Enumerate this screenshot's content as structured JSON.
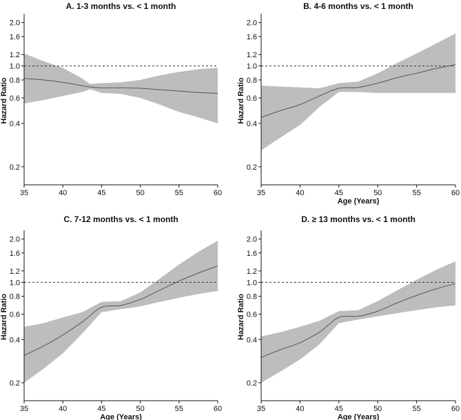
{
  "colors": {
    "band": "#bdbdbd",
    "line": "#555555",
    "reference": "#333333",
    "axis": "#111111",
    "text": "#111111"
  },
  "chart_data": [
    {
      "type": "line",
      "title": "A. 1-3 months vs. < 1 month",
      "xlabel": "",
      "ylabel": "Hazard Ratio",
      "xlim": [
        35,
        60
      ],
      "ylim": [
        0.15,
        2.2
      ],
      "y_scale": "log",
      "xticks": [
        "35",
        "40",
        "45",
        "50",
        "55",
        "60"
      ],
      "yticks": [
        "0.2",
        "0.4",
        "0.6",
        "0.8",
        "1.0",
        "1.2",
        "1.6",
        "2.0"
      ],
      "reference_line": 1.0,
      "x": [
        35,
        37.5,
        40,
        42.5,
        43.5,
        45,
        47.5,
        50,
        52.5,
        55,
        57.5,
        60
      ],
      "hr": [
        0.82,
        0.8,
        0.77,
        0.73,
        0.715,
        0.705,
        0.705,
        0.7,
        0.685,
        0.67,
        0.655,
        0.645
      ],
      "ci_lower": [
        0.55,
        0.58,
        0.62,
        0.66,
        0.69,
        0.65,
        0.64,
        0.6,
        0.54,
        0.48,
        0.44,
        0.4
      ],
      "ci_upper": [
        1.22,
        1.08,
        0.97,
        0.82,
        0.75,
        0.76,
        0.77,
        0.8,
        0.86,
        0.91,
        0.95,
        0.97
      ]
    },
    {
      "type": "line",
      "title": "B. 4-6 months vs. < 1 month",
      "xlabel": "Age (Years)",
      "ylabel": "Hazard Ratio",
      "xlim": [
        35,
        60
      ],
      "ylim": [
        0.15,
        2.2
      ],
      "y_scale": "log",
      "xticks": [
        "35",
        "40",
        "45",
        "50",
        "55",
        "60"
      ],
      "yticks": [
        "0.2",
        "0.4",
        "0.6",
        "0.8",
        "1.0",
        "1.2",
        "1.6",
        "2.0"
      ],
      "reference_line": 1.0,
      "x": [
        35,
        37.5,
        40,
        42.5,
        45,
        47.5,
        50,
        52.5,
        55,
        57.5,
        60
      ],
      "hr": [
        0.44,
        0.49,
        0.54,
        0.62,
        0.7,
        0.71,
        0.76,
        0.83,
        0.89,
        0.96,
        1.02
      ],
      "ci_lower": [
        0.26,
        0.32,
        0.39,
        0.52,
        0.66,
        0.66,
        0.65,
        0.65,
        0.65,
        0.65,
        0.65
      ],
      "ci_upper": [
        0.73,
        0.72,
        0.71,
        0.7,
        0.76,
        0.78,
        0.89,
        1.05,
        1.22,
        1.43,
        1.68
      ]
    },
    {
      "type": "line",
      "title": "C. 7-12 months vs. < 1 month",
      "xlabel": "Age (Years)",
      "ylabel": "Hazard Ratio",
      "xlim": [
        35,
        60
      ],
      "ylim": [
        0.15,
        2.2
      ],
      "y_scale": "log",
      "xticks": [
        "35",
        "40",
        "45",
        "50",
        "55",
        "60"
      ],
      "yticks": [
        "0.2",
        "0.4",
        "0.6",
        "0.8",
        "1.0",
        "1.2",
        "1.6",
        "2.0"
      ],
      "reference_line": 1.0,
      "x": [
        35,
        37.5,
        40,
        42.5,
        45,
        47.5,
        50,
        52.5,
        55,
        57.5,
        60
      ],
      "hr": [
        0.31,
        0.36,
        0.43,
        0.53,
        0.67,
        0.69,
        0.76,
        0.88,
        1.02,
        1.16,
        1.3
      ],
      "ci_lower": [
        0.2,
        0.25,
        0.32,
        0.44,
        0.62,
        0.65,
        0.68,
        0.73,
        0.78,
        0.83,
        0.87
      ],
      "ci_upper": [
        0.49,
        0.52,
        0.57,
        0.62,
        0.73,
        0.74,
        0.85,
        1.06,
        1.33,
        1.63,
        1.95
      ]
    },
    {
      "type": "line",
      "title": "D.  ≥ 13 months vs. < 1 month",
      "xlabel": "Age (Years)",
      "ylabel": "Hazard Ratio",
      "xlim": [
        35,
        60
      ],
      "ylim": [
        0.15,
        2.2
      ],
      "y_scale": "log",
      "xticks": [
        "35",
        "40",
        "45",
        "50",
        "55",
        "60"
      ],
      "yticks": [
        "0.2",
        "0.4",
        "0.6",
        "0.8",
        "1.0",
        "1.2",
        "1.6",
        "2.0"
      ],
      "reference_line": 1.0,
      "x": [
        35,
        37.5,
        40,
        42.5,
        45,
        47.5,
        50,
        52.5,
        55,
        57.5,
        60
      ],
      "hr": [
        0.3,
        0.34,
        0.38,
        0.45,
        0.57,
        0.58,
        0.63,
        0.72,
        0.81,
        0.9,
        0.98
      ],
      "ci_lower": [
        0.2,
        0.24,
        0.29,
        0.37,
        0.52,
        0.55,
        0.58,
        0.61,
        0.64,
        0.67,
        0.69
      ],
      "ci_upper": [
        0.42,
        0.45,
        0.49,
        0.54,
        0.63,
        0.64,
        0.74,
        0.88,
        1.04,
        1.22,
        1.4
      ]
    }
  ]
}
